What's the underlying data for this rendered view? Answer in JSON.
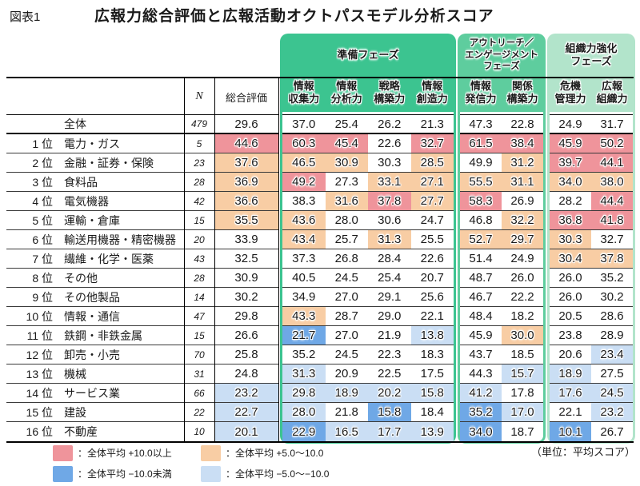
{
  "figure_label": "図表1",
  "title": "広報力総合評価と広報活動オクトパスモデル分析スコア",
  "unit_note": "（単位：平均スコア）",
  "colors": {
    "plus10": "#ef949b",
    "plus5": "#f8cda4",
    "minus10": "#6fa8e6",
    "minus5": "#cadef4",
    "phase1": "#3cc490",
    "phase2": "#5ecd9e",
    "phase3": "#b2e4cb"
  },
  "header": {
    "n_label": "N",
    "overall_label": "総合評価",
    "phases": [
      {
        "label": "準備フェーズ",
        "columns": [
          "情報\n収集力",
          "情報\n分析力",
          "戦略\n構築力",
          "情報\n創造力"
        ]
      },
      {
        "label": "アウトリーチ／\nエンゲージメント\nフェーズ",
        "columns": [
          "情報\n発信力",
          "関係\n構築力"
        ]
      },
      {
        "label": "組織力強化\nフェーズ",
        "columns": [
          "危機\n管理力",
          "広報\n組織力"
        ]
      }
    ]
  },
  "rows": [
    {
      "rank": "",
      "name": "全体",
      "n": "479",
      "cells": [
        {
          "v": "29.6",
          "c": ""
        },
        {
          "v": "37.0",
          "c": ""
        },
        {
          "v": "25.4",
          "c": ""
        },
        {
          "v": "26.2",
          "c": ""
        },
        {
          "v": "21.3",
          "c": ""
        },
        {
          "v": "47.3",
          "c": ""
        },
        {
          "v": "22.8",
          "c": ""
        },
        {
          "v": "24.9",
          "c": ""
        },
        {
          "v": "31.7",
          "c": ""
        }
      ]
    },
    {
      "rank": "1 位",
      "name": "電力・ガス",
      "n": "5",
      "cells": [
        {
          "v": "44.6",
          "c": "p10"
        },
        {
          "v": "60.3",
          "c": "p10"
        },
        {
          "v": "45.4",
          "c": "p10"
        },
        {
          "v": "22.6",
          "c": ""
        },
        {
          "v": "32.7",
          "c": "p10"
        },
        {
          "v": "61.5",
          "c": "p10"
        },
        {
          "v": "38.4",
          "c": "p10"
        },
        {
          "v": "45.9",
          "c": "p10"
        },
        {
          "v": "50.2",
          "c": "p10"
        }
      ]
    },
    {
      "rank": "2 位",
      "name": "金融・証券・保険",
      "n": "23",
      "cells": [
        {
          "v": "37.6",
          "c": "p5"
        },
        {
          "v": "46.5",
          "c": "p5"
        },
        {
          "v": "30.9",
          "c": "p5"
        },
        {
          "v": "30.3",
          "c": ""
        },
        {
          "v": "28.5",
          "c": "p5"
        },
        {
          "v": "49.9",
          "c": ""
        },
        {
          "v": "31.2",
          "c": "p5"
        },
        {
          "v": "39.7",
          "c": "p10"
        },
        {
          "v": "44.1",
          "c": "p10"
        }
      ]
    },
    {
      "rank": "3 位",
      "name": "食料品",
      "n": "28",
      "cells": [
        {
          "v": "36.9",
          "c": "p5"
        },
        {
          "v": "49.2",
          "c": "p10"
        },
        {
          "v": "27.3",
          "c": ""
        },
        {
          "v": "33.1",
          "c": "p5"
        },
        {
          "v": "27.1",
          "c": "p5"
        },
        {
          "v": "55.5",
          "c": "p5"
        },
        {
          "v": "31.1",
          "c": "p5"
        },
        {
          "v": "34.0",
          "c": "p5"
        },
        {
          "v": "38.0",
          "c": "p5"
        }
      ]
    },
    {
      "rank": "4 位",
      "name": "電気機器",
      "n": "42",
      "cells": [
        {
          "v": "36.6",
          "c": "p5"
        },
        {
          "v": "38.3",
          "c": ""
        },
        {
          "v": "31.6",
          "c": "p5"
        },
        {
          "v": "37.8",
          "c": "p10"
        },
        {
          "v": "27.7",
          "c": "p5"
        },
        {
          "v": "58.3",
          "c": "p10"
        },
        {
          "v": "26.9",
          "c": ""
        },
        {
          "v": "28.2",
          "c": ""
        },
        {
          "v": "44.4",
          "c": "p10"
        }
      ]
    },
    {
      "rank": "5 位",
      "name": "運輸・倉庫",
      "n": "15",
      "cells": [
        {
          "v": "35.5",
          "c": "p5"
        },
        {
          "v": "43.6",
          "c": "p5"
        },
        {
          "v": "28.0",
          "c": ""
        },
        {
          "v": "30.6",
          "c": ""
        },
        {
          "v": "24.7",
          "c": ""
        },
        {
          "v": "46.8",
          "c": ""
        },
        {
          "v": "32.2",
          "c": "p5"
        },
        {
          "v": "36.8",
          "c": "p10"
        },
        {
          "v": "41.8",
          "c": "p10"
        }
      ]
    },
    {
      "rank": "6 位",
      "name": "輸送用機器・精密機器",
      "n": "20",
      "cells": [
        {
          "v": "33.9",
          "c": ""
        },
        {
          "v": "43.4",
          "c": "p5"
        },
        {
          "v": "25.7",
          "c": ""
        },
        {
          "v": "31.3",
          "c": "p5"
        },
        {
          "v": "25.5",
          "c": ""
        },
        {
          "v": "52.7",
          "c": "p5"
        },
        {
          "v": "29.7",
          "c": "p5"
        },
        {
          "v": "30.3",
          "c": "p5"
        },
        {
          "v": "32.7",
          "c": ""
        }
      ]
    },
    {
      "rank": "7 位",
      "name": "繊維・化学・医薬",
      "n": "43",
      "cells": [
        {
          "v": "32.5",
          "c": ""
        },
        {
          "v": "37.3",
          "c": ""
        },
        {
          "v": "26.8",
          "c": ""
        },
        {
          "v": "28.4",
          "c": ""
        },
        {
          "v": "22.6",
          "c": ""
        },
        {
          "v": "51.4",
          "c": ""
        },
        {
          "v": "24.9",
          "c": ""
        },
        {
          "v": "30.4",
          "c": "p5"
        },
        {
          "v": "37.8",
          "c": "p5"
        }
      ]
    },
    {
      "rank": "8 位",
      "name": "その他",
      "n": "28",
      "cells": [
        {
          "v": "30.9",
          "c": ""
        },
        {
          "v": "40.5",
          "c": ""
        },
        {
          "v": "24.5",
          "c": ""
        },
        {
          "v": "25.4",
          "c": ""
        },
        {
          "v": "20.7",
          "c": ""
        },
        {
          "v": "48.7",
          "c": ""
        },
        {
          "v": "26.0",
          "c": ""
        },
        {
          "v": "26.0",
          "c": ""
        },
        {
          "v": "35.2",
          "c": ""
        }
      ]
    },
    {
      "rank": "9 位",
      "name": "その他製品",
      "n": "14",
      "cells": [
        {
          "v": "30.2",
          "c": ""
        },
        {
          "v": "34.9",
          "c": ""
        },
        {
          "v": "27.0",
          "c": ""
        },
        {
          "v": "29.1",
          "c": ""
        },
        {
          "v": "25.6",
          "c": ""
        },
        {
          "v": "46.7",
          "c": ""
        },
        {
          "v": "22.2",
          "c": ""
        },
        {
          "v": "26.0",
          "c": ""
        },
        {
          "v": "30.2",
          "c": ""
        }
      ]
    },
    {
      "rank": "10 位",
      "name": "情報・通信",
      "n": "47",
      "cells": [
        {
          "v": "29.8",
          "c": ""
        },
        {
          "v": "43.3",
          "c": "p5"
        },
        {
          "v": "28.7",
          "c": ""
        },
        {
          "v": "29.0",
          "c": ""
        },
        {
          "v": "22.1",
          "c": ""
        },
        {
          "v": "48.4",
          "c": ""
        },
        {
          "v": "18.2",
          "c": ""
        },
        {
          "v": "20.5",
          "c": ""
        },
        {
          "v": "28.6",
          "c": ""
        }
      ]
    },
    {
      "rank": "11 位",
      "name": "鉄鋼・非鉄金属",
      "n": "15",
      "cells": [
        {
          "v": "26.6",
          "c": ""
        },
        {
          "v": "21.7",
          "c": "m10"
        },
        {
          "v": "27.0",
          "c": ""
        },
        {
          "v": "21.9",
          "c": ""
        },
        {
          "v": "13.8",
          "c": "m5"
        },
        {
          "v": "45.9",
          "c": ""
        },
        {
          "v": "30.0",
          "c": "p5"
        },
        {
          "v": "23.8",
          "c": ""
        },
        {
          "v": "28.9",
          "c": ""
        }
      ]
    },
    {
      "rank": "12 位",
      "name": "卸売・小売",
      "n": "70",
      "cells": [
        {
          "v": "25.8",
          "c": ""
        },
        {
          "v": "35.2",
          "c": ""
        },
        {
          "v": "24.5",
          "c": ""
        },
        {
          "v": "22.3",
          "c": ""
        },
        {
          "v": "18.3",
          "c": ""
        },
        {
          "v": "43.7",
          "c": ""
        },
        {
          "v": "18.5",
          "c": ""
        },
        {
          "v": "20.6",
          "c": ""
        },
        {
          "v": "23.4",
          "c": "m5"
        }
      ]
    },
    {
      "rank": "13 位",
      "name": "機械",
      "n": "31",
      "cells": [
        {
          "v": "24.8",
          "c": ""
        },
        {
          "v": "31.3",
          "c": "m5"
        },
        {
          "v": "20.9",
          "c": ""
        },
        {
          "v": "22.5",
          "c": ""
        },
        {
          "v": "17.5",
          "c": ""
        },
        {
          "v": "44.3",
          "c": ""
        },
        {
          "v": "15.7",
          "c": "m5"
        },
        {
          "v": "18.9",
          "c": "m5"
        },
        {
          "v": "27.5",
          "c": ""
        }
      ]
    },
    {
      "rank": "14 位",
      "name": "サービス業",
      "n": "66",
      "cells": [
        {
          "v": "23.2",
          "c": "m5"
        },
        {
          "v": "29.8",
          "c": "m5"
        },
        {
          "v": "18.9",
          "c": "m5"
        },
        {
          "v": "20.2",
          "c": "m5"
        },
        {
          "v": "15.8",
          "c": "m5"
        },
        {
          "v": "41.2",
          "c": "m5"
        },
        {
          "v": "17.8",
          "c": ""
        },
        {
          "v": "17.6",
          "c": "m5"
        },
        {
          "v": "24.5",
          "c": "m5"
        }
      ]
    },
    {
      "rank": "15 位",
      "name": "建設",
      "n": "22",
      "cells": [
        {
          "v": "22.7",
          "c": "m5"
        },
        {
          "v": "28.0",
          "c": "m5"
        },
        {
          "v": "21.8",
          "c": ""
        },
        {
          "v": "15.8",
          "c": "m10"
        },
        {
          "v": "18.4",
          "c": ""
        },
        {
          "v": "35.2",
          "c": "m10"
        },
        {
          "v": "17.0",
          "c": "m5"
        },
        {
          "v": "22.1",
          "c": ""
        },
        {
          "v": "23.2",
          "c": "m5"
        }
      ]
    },
    {
      "rank": "16 位",
      "name": "不動産",
      "n": "10",
      "cells": [
        {
          "v": "20.1",
          "c": "m5"
        },
        {
          "v": "22.9",
          "c": "m10"
        },
        {
          "v": "16.5",
          "c": "m5"
        },
        {
          "v": "17.7",
          "c": "m5"
        },
        {
          "v": "13.9",
          "c": "m5"
        },
        {
          "v": "34.0",
          "c": "m10"
        },
        {
          "v": "18.7",
          "c": ""
        },
        {
          "v": "10.1",
          "c": "m10"
        },
        {
          "v": "26.7",
          "c": ""
        }
      ]
    }
  ],
  "legend": [
    {
      "key": "plus10",
      "label": "：全体平均 +10.0以上"
    },
    {
      "key": "plus5",
      "label": "：全体平均 +5.0～10.0"
    },
    {
      "key": "minus10",
      "label": "：全体平均 −10.0未満"
    },
    {
      "key": "minus5",
      "label": "：全体平均 −5.0～−10.0"
    }
  ]
}
